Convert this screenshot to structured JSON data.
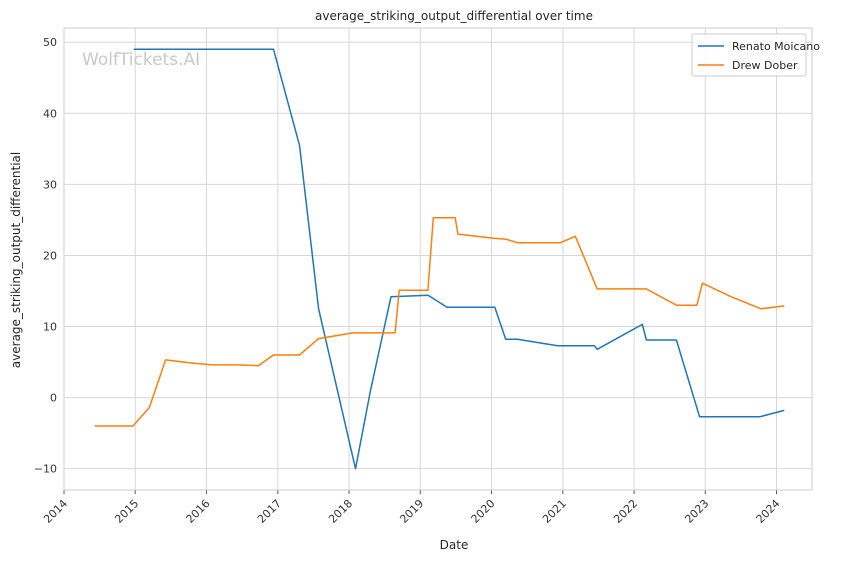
{
  "chart_data": {
    "type": "line",
    "title": "average_striking_output_differential over time",
    "xlabel": "Date",
    "ylabel": "average_striking_output_differential",
    "watermark": "WolfTickets.AI",
    "xlim": [
      "2014-01-01",
      "2024-07-01"
    ],
    "ylim": [
      -13,
      52
    ],
    "x_ticks": [
      "2014",
      "2015",
      "2016",
      "2017",
      "2018",
      "2019",
      "2020",
      "2021",
      "2022",
      "2023",
      "2024"
    ],
    "y_ticks": [
      -10,
      0,
      10,
      20,
      30,
      40,
      50
    ],
    "grid": true,
    "legend_position": "top-right",
    "series": [
      {
        "name": "Renato Moicano",
        "color": "#1f77b4",
        "points": [
          [
            "2014-12-25",
            49
          ],
          [
            "2016-12-10",
            49
          ],
          [
            "2017-04-22",
            35.5
          ],
          [
            "2017-07-29",
            12.5
          ],
          [
            "2018-02-03",
            -10
          ],
          [
            "2018-04-21",
            1
          ],
          [
            "2018-08-04",
            14.2
          ],
          [
            "2019-02-10",
            14.4
          ],
          [
            "2019-05-18",
            12.7
          ],
          [
            "2020-01-18",
            12.7
          ],
          [
            "2020-03-14",
            8.2
          ],
          [
            "2020-05-13",
            8.2
          ],
          [
            "2020-12-05",
            7.3
          ],
          [
            "2021-06-12",
            7.3
          ],
          [
            "2021-06-26",
            6.8
          ],
          [
            "2022-02-12",
            10.3
          ],
          [
            "2022-03-05",
            8.1
          ],
          [
            "2022-08-06",
            8.1
          ],
          [
            "2022-12-03",
            -2.7
          ],
          [
            "2023-06-03",
            -2.7
          ],
          [
            "2023-10-07",
            -2.7
          ],
          [
            "2024-02-10",
            -1.8
          ]
        ]
      },
      {
        "name": "Drew Dober",
        "color": "#ff7f0e",
        "points": [
          [
            "2014-06-07",
            -4
          ],
          [
            "2014-12-20",
            -4
          ],
          [
            "2015-03-14",
            -1.4
          ],
          [
            "2015-06-06",
            5.3
          ],
          [
            "2015-10-03",
            4.9
          ],
          [
            "2016-01-30",
            4.6
          ],
          [
            "2016-06-04",
            4.6
          ],
          [
            "2016-09-24",
            4.5
          ],
          [
            "2016-12-10",
            6
          ],
          [
            "2017-04-22",
            6
          ],
          [
            "2017-07-29",
            8.3
          ],
          [
            "2018-01-20",
            9.1
          ],
          [
            "2018-06-30",
            9.1
          ],
          [
            "2018-08-25",
            9.1
          ],
          [
            "2018-09-15",
            15.1
          ],
          [
            "2019-02-09",
            15.1
          ],
          [
            "2019-03-09",
            25.3
          ],
          [
            "2019-06-29",
            25.3
          ],
          [
            "2019-07-13",
            23
          ],
          [
            "2020-01-18",
            22.4
          ],
          [
            "2020-03-14",
            22.3
          ],
          [
            "2020-05-13",
            21.8
          ],
          [
            "2020-12-19",
            21.8
          ],
          [
            "2021-03-06",
            22.7
          ],
          [
            "2021-06-26",
            15.3
          ],
          [
            "2022-03-05",
            15.3
          ],
          [
            "2022-08-06",
            13
          ],
          [
            "2022-11-19",
            13
          ],
          [
            "2022-12-17",
            16.1
          ],
          [
            "2023-05-13",
            14.2
          ],
          [
            "2023-10-14",
            12.5
          ],
          [
            "2024-02-10",
            12.9
          ]
        ]
      }
    ]
  }
}
